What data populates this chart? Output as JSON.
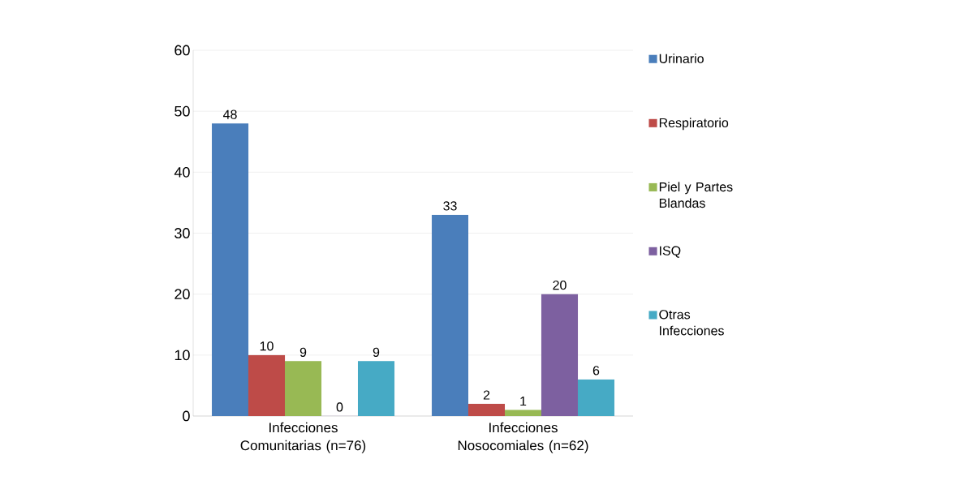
{
  "chart_data": {
    "type": "bar",
    "categories": [
      "Infecciones Comunitarias (n=76)",
      "Infecciones Nosocomiales (n=62)"
    ],
    "series": [
      {
        "name": "Urinario",
        "color": "#4a7ebb",
        "values": [
          48,
          33
        ]
      },
      {
        "name": "Respiratorio",
        "color": "#be4b48",
        "values": [
          10,
          2
        ]
      },
      {
        "name": "Piel y Partes Blandas",
        "color": "#98b954",
        "values": [
          9,
          1
        ]
      },
      {
        "name": "ISQ",
        "color": "#7d60a0",
        "values": [
          0,
          20
        ]
      },
      {
        "name": "Otras Infecciones",
        "color": "#46aac5",
        "values": [
          9,
          6
        ]
      }
    ],
    "ylim": [
      0,
      60
    ],
    "yticks": [
      0,
      10,
      20,
      30,
      40,
      50,
      60
    ],
    "grid": "y",
    "legend": "right",
    "data_labels": true
  }
}
